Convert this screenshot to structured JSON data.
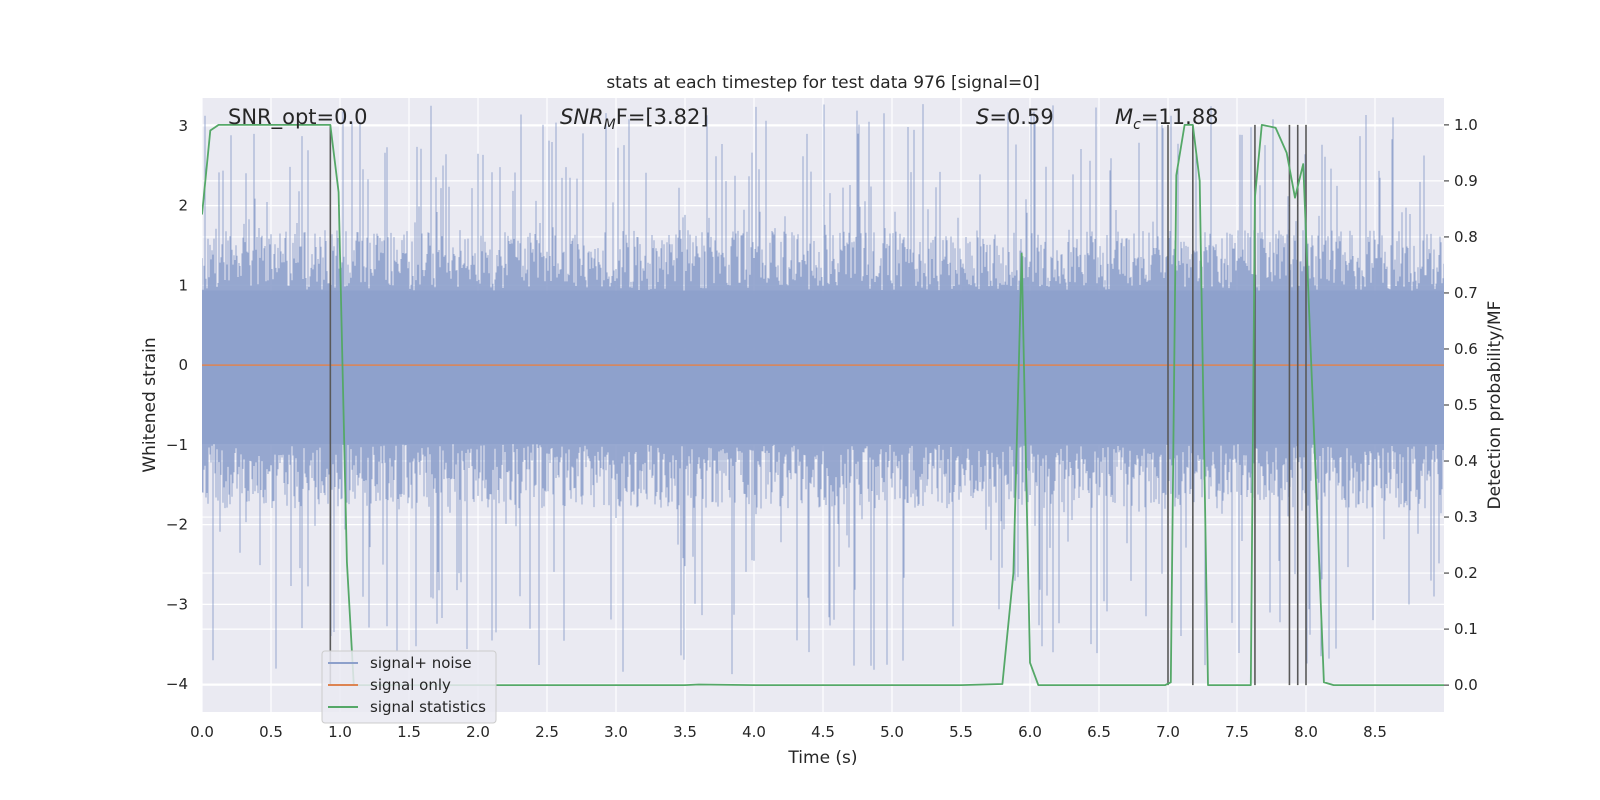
{
  "chart_data": {
    "type": "line",
    "title": "stats at each timestep for test data 976 [signal=0]",
    "xlabel": "Time (s)",
    "ylabel": "Whitened strain",
    "y2label": "Detection probability/MF",
    "xlim": [
      0.0,
      9.0
    ],
    "ylim": [
      -4.35,
      3.35
    ],
    "y2lim": [
      -0.048,
      1.048
    ],
    "x_ticks": [
      "0.0",
      "0.5",
      "1.0",
      "1.5",
      "2.0",
      "2.5",
      "3.0",
      "3.5",
      "4.0",
      "4.5",
      "5.0",
      "5.5",
      "6.0",
      "6.5",
      "7.0",
      "7.5",
      "8.0",
      "8.5"
    ],
    "y_ticks": [
      "3",
      "2",
      "1",
      "0",
      "−1",
      "−2",
      "−3",
      "−4"
    ],
    "y2_ticks": [
      "1.0",
      "0.9",
      "0.8",
      "0.7",
      "0.6",
      "0.5",
      "0.4",
      "0.3",
      "0.2",
      "0.1",
      "0.0"
    ],
    "grid": true,
    "legend_position": "lower-left",
    "annotations": {
      "snr_opt": "SNR_opt=0.0",
      "snr_mf_main": "SNR",
      "snr_mf_sub": "M",
      "snr_mf_rest": "F=[3.82]",
      "s_var": "S",
      "s_val": "=0.59",
      "mc_var": "M",
      "mc_sub": "c",
      "mc_val": "=11.88"
    },
    "series": [
      {
        "name": "signal+ noise",
        "axis": "left",
        "color": "#8da0cb",
        "style": "noise-band",
        "band_low": -1.8,
        "band_high": 1.7,
        "spike_low_min": -3.9,
        "spike_high_max": 3.3
      },
      {
        "name": "signal only",
        "axis": "left",
        "color": "#dd8452",
        "x": [
          0.0,
          9.0
        ],
        "y": [
          0.0,
          0.0
        ]
      },
      {
        "name": "signal statistics",
        "axis": "right",
        "color": "#55a868",
        "x": [
          0.0,
          0.06,
          0.12,
          0.2,
          0.5,
          0.7,
          0.93,
          0.99,
          1.05,
          1.1,
          1.4,
          2.0,
          3.0,
          3.5,
          3.6,
          4.0,
          5.0,
          5.5,
          5.8,
          5.88,
          5.94,
          6.0,
          6.06,
          6.5,
          6.98,
          7.02,
          7.06,
          7.12,
          7.18,
          7.23,
          7.29,
          7.35,
          7.6,
          7.63,
          7.68,
          7.78,
          7.86,
          7.92,
          7.98,
          8.05,
          8.13,
          8.2,
          8.5,
          9.0
        ],
        "y": [
          0.84,
          0.99,
          1.0,
          1.0,
          1.0,
          1.0,
          1.0,
          0.88,
          0.22,
          0.0,
          0.0,
          0.0,
          0.0,
          0.0,
          0.001,
          0.0,
          0.0,
          0.0,
          0.002,
          0.2,
          0.77,
          0.04,
          0.0,
          0.0,
          0.0,
          0.005,
          0.91,
          1.0,
          1.0,
          0.9,
          0.0,
          0.0,
          0.0,
          0.87,
          1.0,
          0.995,
          0.95,
          0.87,
          0.93,
          0.5,
          0.005,
          0.0,
          0.0,
          0.0
        ]
      }
    ],
    "event_lines": {
      "color": "#595959",
      "x": [
        0.93,
        7.0,
        7.18,
        7.63,
        7.88,
        7.94,
        8.0
      ]
    }
  }
}
